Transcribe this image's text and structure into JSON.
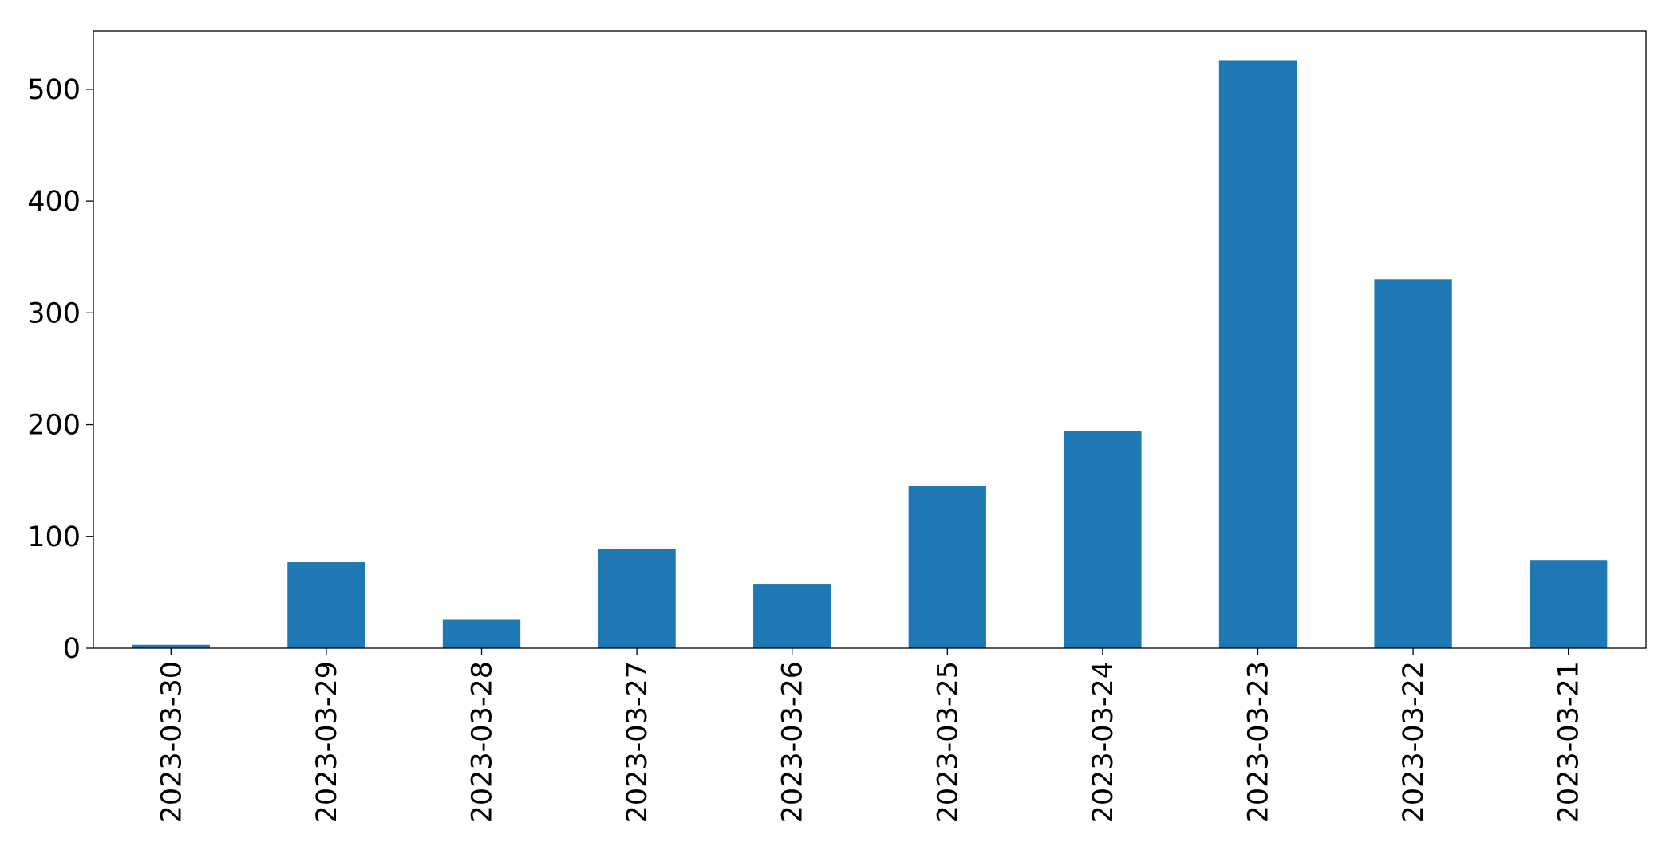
{
  "chart_data": {
    "type": "bar",
    "categories": [
      "2023-03-30",
      "2023-03-29",
      "2023-03-28",
      "2023-03-27",
      "2023-03-26",
      "2023-03-25",
      "2023-03-24",
      "2023-03-23",
      "2023-03-22",
      "2023-03-21"
    ],
    "values": [
      3,
      77,
      26,
      89,
      57,
      145,
      194,
      526,
      330,
      79
    ],
    "color": "#1f77b4",
    "ylim": [
      0,
      552
    ],
    "yticks": [
      0,
      100,
      200,
      300,
      400,
      500
    ],
    "grid": false
  }
}
